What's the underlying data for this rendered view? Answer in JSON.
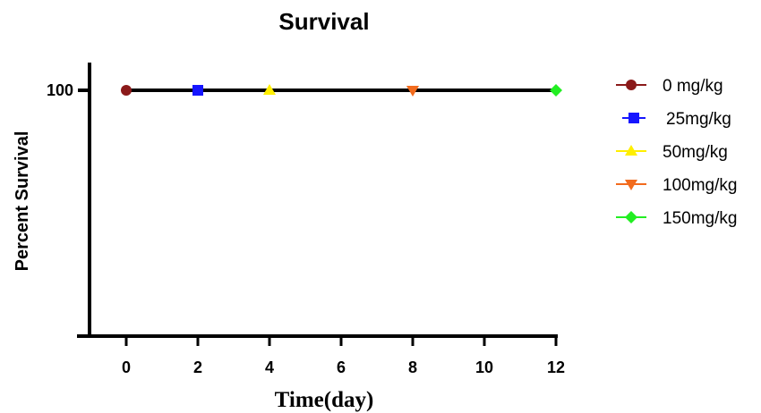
{
  "chart_data": {
    "type": "line",
    "title": "Survival",
    "xlabel": "Time(day)",
    "ylabel": "Percent Survival",
    "xlim": [
      -1,
      12
    ],
    "ylim": [
      0,
      110
    ],
    "x_ticks": [
      0,
      2,
      4,
      6,
      8,
      10,
      12
    ],
    "x_tick_labels": [
      "0",
      "2",
      "4",
      "6",
      "8",
      "10",
      "12"
    ],
    "y_ticks": [
      100
    ],
    "y_tick_labels": [
      "100"
    ],
    "grid": false,
    "legend_position": "right",
    "line": {
      "x": [
        0,
        12
      ],
      "y": [
        100,
        100
      ],
      "color": "#000000"
    },
    "series": [
      {
        "name": "0 mg/kg",
        "marker": "circle",
        "color": "#8B1A1A",
        "points": [
          {
            "x": 0,
            "y": 100
          }
        ]
      },
      {
        "name": "25mg/kg",
        "marker": "square",
        "color": "#1515FF",
        "points": [
          {
            "x": 2,
            "y": 100
          }
        ]
      },
      {
        "name": "50mg/kg",
        "marker": "triangle-up",
        "color": "#FFEF00",
        "points": [
          {
            "x": 4,
            "y": 100
          }
        ]
      },
      {
        "name": "100mg/kg",
        "marker": "triangle-down",
        "color": "#F26B1D",
        "points": [
          {
            "x": 8,
            "y": 100
          }
        ]
      },
      {
        "name": "150mg/kg",
        "marker": "diamond",
        "color": "#22EE22",
        "points": [
          {
            "x": 12,
            "y": 100
          }
        ]
      }
    ]
  }
}
